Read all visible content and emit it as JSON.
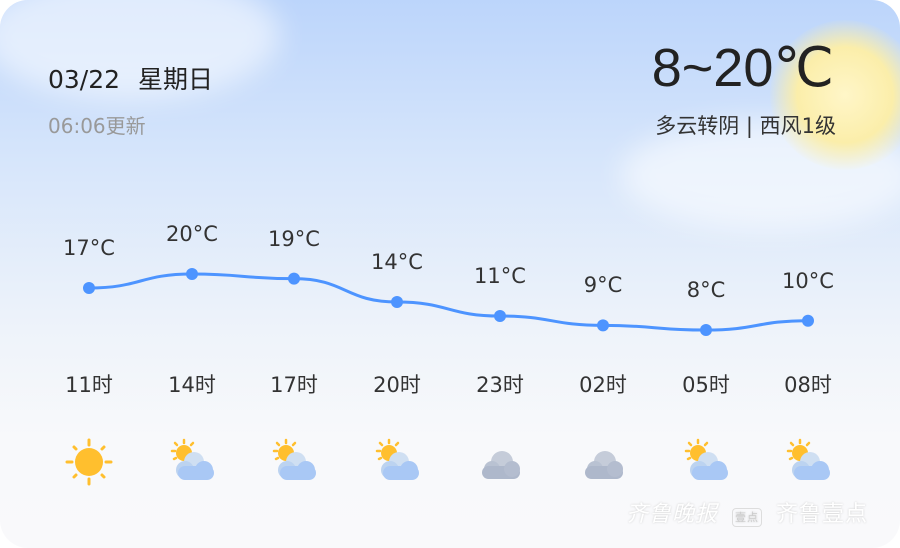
{
  "header": {
    "date": "03/22",
    "weekday": "星期日",
    "updated": "06:06更新"
  },
  "current": {
    "temp_range": "8~20℃",
    "description": "多云转阴 | 西风1级"
  },
  "hourly": [
    {
      "time": "11时",
      "temp": 17,
      "temp_label": "17°C",
      "icon": "sunny-icon"
    },
    {
      "time": "14时",
      "temp": 20,
      "temp_label": "20°C",
      "icon": "partly-cloudy-icon"
    },
    {
      "time": "17时",
      "temp": 19,
      "temp_label": "19°C",
      "icon": "partly-cloudy-icon"
    },
    {
      "time": "20时",
      "temp": 14,
      "temp_label": "14°C",
      "icon": "partly-cloudy-icon"
    },
    {
      "time": "23时",
      "temp": 11,
      "temp_label": "11°C",
      "icon": "cloudy-icon"
    },
    {
      "time": "02时",
      "temp": 9,
      "temp_label": "9°C",
      "icon": "cloudy-icon"
    },
    {
      "time": "05时",
      "temp": 8,
      "temp_label": "8°C",
      "icon": "partly-cloudy-icon"
    },
    {
      "time": "08时",
      "temp": 10,
      "temp_label": "10°C",
      "icon": "partly-cloudy-icon"
    }
  ],
  "colors": {
    "line": "#4d94ff",
    "sun": "#ffbf2e",
    "cloud": "#a9c8f5"
  },
  "watermark": {
    "brand1": "齐鲁晚报",
    "brand2": "齐鲁壹点",
    "badge": "壹点"
  }
}
